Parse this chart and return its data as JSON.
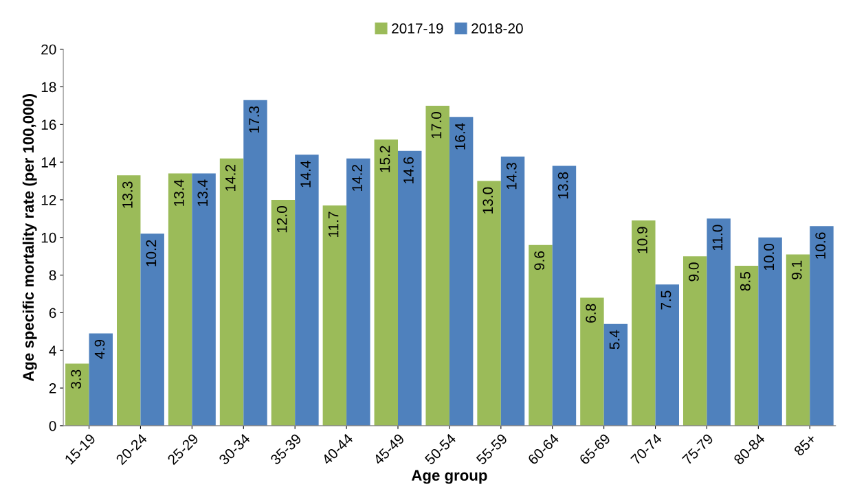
{
  "chart_data": {
    "type": "bar",
    "xlabel": "Age group",
    "ylabel": "Age specific mortality rate (per 100,000)",
    "categories": [
      "15-19",
      "20-24",
      "25-29",
      "30-34",
      "35-39",
      "40-44",
      "45-49",
      "50-54",
      "55-59",
      "60-64",
      "65-69",
      "70-74",
      "75-79",
      "80-84",
      "85+"
    ],
    "series": [
      {
        "name": "2017-19",
        "color": "#9bbb59",
        "values": [
          3.3,
          13.3,
          13.4,
          14.2,
          12.0,
          11.7,
          15.2,
          17.0,
          13.0,
          9.6,
          6.8,
          10.9,
          9.0,
          8.5,
          9.1
        ],
        "value_labels": [
          "3.3",
          "13.3",
          "13.4",
          "14.2",
          "12.0",
          "11.7",
          "15.2",
          "17.0",
          "13.0",
          "9.6",
          "6.8",
          "10.9",
          "9.0",
          "8.5",
          "9.1"
        ]
      },
      {
        "name": "2018-20",
        "color": "#4f81bd",
        "values": [
          4.9,
          10.2,
          13.4,
          17.3,
          14.4,
          14.2,
          14.6,
          16.4,
          14.3,
          13.8,
          5.4,
          7.5,
          11.0,
          10.0,
          10.6
        ],
        "value_labels": [
          "4.9",
          "10.2",
          "13.4",
          "17.3",
          "14.4",
          "14.2",
          "14.6",
          "16.4",
          "14.3",
          "13.8",
          "5.4",
          "7.5",
          "11.0",
          "10.0",
          "10.6"
        ]
      }
    ],
    "ylim": [
      0,
      20
    ],
    "yticks": [
      0,
      2,
      4,
      6,
      8,
      10,
      12,
      14,
      16,
      18,
      20
    ],
    "grid": false,
    "legend": "top"
  }
}
